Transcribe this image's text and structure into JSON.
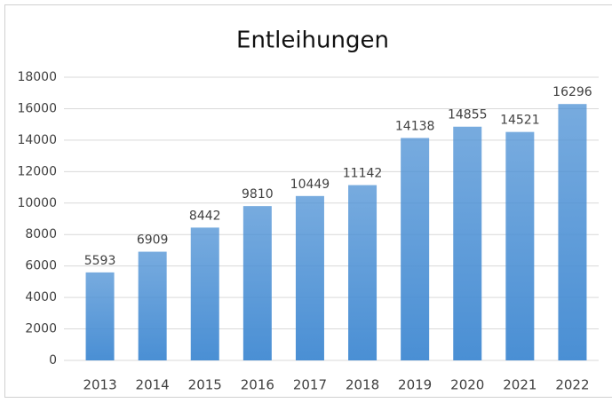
{
  "chart_data": {
    "type": "bar",
    "title": "Entleihungen",
    "categories": [
      "2013",
      "2014",
      "2015",
      "2016",
      "2017",
      "2018",
      "2019",
      "2020",
      "2021",
      "2022"
    ],
    "values": [
      5593,
      6909,
      8442,
      9810,
      10449,
      11142,
      14138,
      14855,
      14521,
      16296
    ],
    "color": "#4a8fd4",
    "ylim": [
      0,
      18000
    ],
    "yticks": [
      0,
      2000,
      4000,
      6000,
      8000,
      10000,
      12000,
      14000,
      16000,
      18000
    ],
    "grid": true
  }
}
